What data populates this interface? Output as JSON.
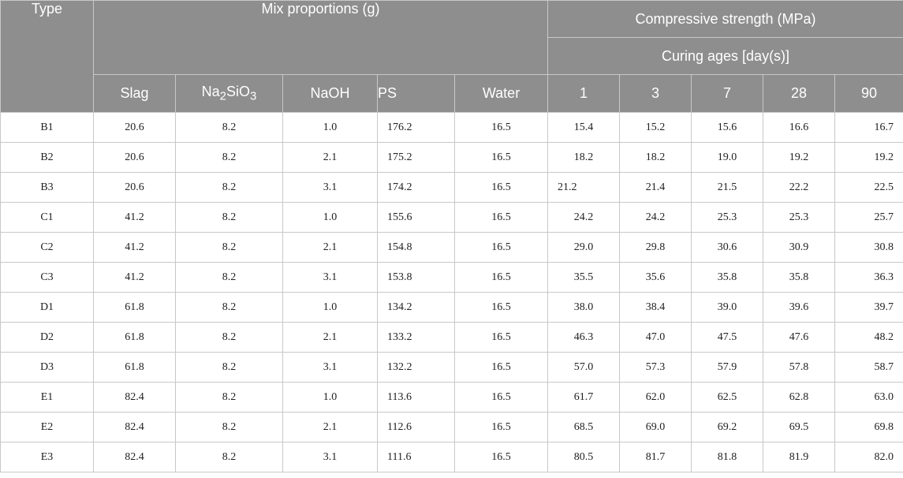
{
  "header": {
    "type": "Type",
    "mix_proportions": "Mix proportions (g)",
    "compressive_strength": "Compressive strength (MPa)",
    "curing_ages": "Curing ages [day(s)]",
    "columns": {
      "slag": "Slag",
      "na2sio3_prefix": "Na",
      "na2sio3_sub1": "2",
      "na2sio3_mid": "SiO",
      "na2sio3_sub2": "3",
      "naoh": "NaOH",
      "ps": "PS",
      "water": "Water",
      "day1": "1",
      "day3": "3",
      "day7": "7",
      "day28": "28",
      "day90": "90"
    }
  },
  "rows": [
    {
      "type": "B1",
      "slag": "20.6",
      "na2sio3": "8.2",
      "naoh": "1.0",
      "ps": "176.2",
      "water": "16.5",
      "d1": "15.4",
      "d3": "15.2",
      "d7": "15.6",
      "d28": "16.6",
      "d90": "16.7"
    },
    {
      "type": "B2",
      "slag": "20.6",
      "na2sio3": "8.2",
      "naoh": "2.1",
      "ps": "175.2",
      "water": "16.5",
      "d1": "18.2",
      "d3": "18.2",
      "d7": "19.0",
      "d28": "19.2",
      "d90": "19.2"
    },
    {
      "type": "B3",
      "slag": "20.6",
      "na2sio3": "8.2",
      "naoh": "3.1",
      "ps": "174.2",
      "water": "16.5",
      "d1": "21.2",
      "d3": "21.4",
      "d7": "21.5",
      "d28": "22.2",
      "d90": "22.5"
    },
    {
      "type": "C1",
      "slag": "41.2",
      "na2sio3": "8.2",
      "naoh": "1.0",
      "ps": "155.6",
      "water": "16.5",
      "d1": "24.2",
      "d3": "24.2",
      "d7": "25.3",
      "d28": "25.3",
      "d90": "25.7"
    },
    {
      "type": "C2",
      "slag": "41.2",
      "na2sio3": "8.2",
      "naoh": "2.1",
      "ps": "154.8",
      "water": "16.5",
      "d1": "29.0",
      "d3": "29.8",
      "d7": "30.6",
      "d28": "30.9",
      "d90": "30.8"
    },
    {
      "type": "C3",
      "slag": "41.2",
      "na2sio3": "8.2",
      "naoh": "3.1",
      "ps": "153.8",
      "water": "16.5",
      "d1": "35.5",
      "d3": "35.6",
      "d7": "35.8",
      "d28": "35.8",
      "d90": "36.3"
    },
    {
      "type": "D1",
      "slag": "61.8",
      "na2sio3": "8.2",
      "naoh": "1.0",
      "ps": "134.2",
      "water": "16.5",
      "d1": "38.0",
      "d3": "38.4",
      "d7": "39.0",
      "d28": "39.6",
      "d90": "39.7"
    },
    {
      "type": "D2",
      "slag": "61.8",
      "na2sio3": "8.2",
      "naoh": "2.1",
      "ps": "133.2",
      "water": "16.5",
      "d1": "46.3",
      "d3": "47.0",
      "d7": "47.5",
      "d28": "47.6",
      "d90": "48.2"
    },
    {
      "type": "D3",
      "slag": "61.8",
      "na2sio3": "8.2",
      "naoh": "3.1",
      "ps": "132.2",
      "water": "16.5",
      "d1": "57.0",
      "d3": "57.3",
      "d7": "57.9",
      "d28": "57.8",
      "d90": "58.7"
    },
    {
      "type": "E1",
      "slag": "82.4",
      "na2sio3": "8.2",
      "naoh": "1.0",
      "ps": "113.6",
      "water": "16.5",
      "d1": "61.7",
      "d3": "62.0",
      "d7": "62.5",
      "d28": "62.8",
      "d90": "63.0"
    },
    {
      "type": "E2",
      "slag": "82.4",
      "na2sio3": "8.2",
      "naoh": "2.1",
      "ps": "112.6",
      "water": "16.5",
      "d1": "68.5",
      "d3": "69.0",
      "d7": "69.2",
      "d28": "69.5",
      "d90": "69.8"
    },
    {
      "type": "E3",
      "slag": "82.4",
      "na2sio3": "8.2",
      "naoh": "3.1",
      "ps": "111.6",
      "water": "16.5",
      "d1": "80.5",
      "d3": "81.7",
      "d7": "81.8",
      "d28": "81.9",
      "d90": "82.0"
    }
  ],
  "colors": {
    "header_bg": "#8e8e8e",
    "header_text": "#ffffff",
    "border": "#c8c8c8"
  }
}
